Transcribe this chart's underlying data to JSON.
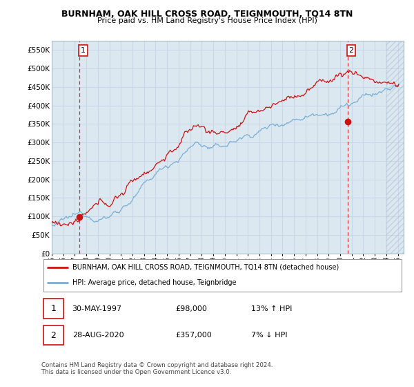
{
  "title": "BURNHAM, OAK HILL CROSS ROAD, TEIGNMOUTH, TQ14 8TN",
  "subtitle": "Price paid vs. HM Land Registry's House Price Index (HPI)",
  "legend_line1": "BURNHAM, OAK HILL CROSS ROAD, TEIGNMOUTH, TQ14 8TN (detached house)",
  "legend_line2": "HPI: Average price, detached house, Teignbridge",
  "sale1_date": "30-MAY-1997",
  "sale1_price": "£98,000",
  "sale1_hpi": "13% ↑ HPI",
  "sale2_date": "28-AUG-2020",
  "sale2_price": "£357,000",
  "sale2_hpi": "7% ↓ HPI",
  "footer": "Contains HM Land Registry data © Crown copyright and database right 2024.\nThis data is licensed under the Open Government Licence v3.0.",
  "ylim": [
    0,
    575000
  ],
  "yticks": [
    0,
    50000,
    100000,
    150000,
    200000,
    250000,
    300000,
    350000,
    400000,
    450000,
    500000,
    550000
  ],
  "ytick_labels": [
    "£0",
    "£50K",
    "£100K",
    "£150K",
    "£200K",
    "£250K",
    "£300K",
    "£350K",
    "£400K",
    "£450K",
    "£500K",
    "£550K"
  ],
  "red_color": "#cc1111",
  "blue_color": "#7aaed6",
  "grid_color": "#c8d8e8",
  "plot_bg": "#dce8f0",
  "bg_color": "#ffffff",
  "sale1_year": 1997.42,
  "sale1_price_val": 98000,
  "sale2_year": 2020.65,
  "sale2_price_val": 357000,
  "hatch_start": 2024.0,
  "xlim_start": 1995.0,
  "xlim_end": 2025.5
}
